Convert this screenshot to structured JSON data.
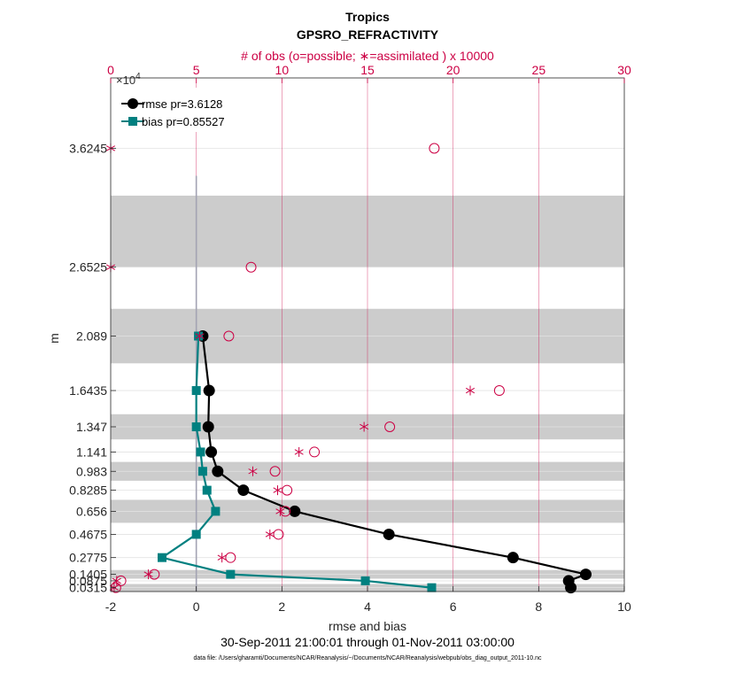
{
  "chart_data": {
    "type": "line",
    "title": "Tropics",
    "subtitle": "GPSRO_REFRACTIVITY",
    "top_axis_label": "# of obs (o=possible; ∗=assimilated ) x 10000",
    "top_axis_exponent_base": "×10",
    "top_axis_exponent_power": "4",
    "xlabel": "rmse and bias",
    "ylabel": "m",
    "time_range": "30-Sep-2011 21:00:01 through 01-Nov-2011 03:00:00",
    "data_file": "data file: /Users/gharamti/Documents/NCAR/Reanalysis/~/Documents/NCAR/Reanalysis/webpub/obs_diag_output_2011-10.nc",
    "xlim": [
      -2,
      10
    ],
    "x_ticks": [
      -2,
      0,
      2,
      4,
      6,
      8,
      10
    ],
    "x_tick_labels": [
      "-2",
      "0",
      "2",
      "4",
      "6",
      "8",
      "10"
    ],
    "top_xlim": [
      0,
      30
    ],
    "top_ticks": [
      0,
      5,
      10,
      15,
      20,
      25,
      30
    ],
    "top_tick_labels": [
      "0",
      "5",
      "10",
      "15",
      "20",
      "25",
      "30"
    ],
    "ylim": [
      0,
      4.2
    ],
    "levels": [
      0.0315,
      0.0875,
      0.1405,
      0.2775,
      0.4675,
      0.656,
      0.8285,
      0.983,
      1.141,
      1.347,
      1.6435,
      2.089,
      2.6525,
      3.6245
    ],
    "level_labels": [
      "0.0315",
      "0.0875",
      "0.1405",
      "0.2775",
      "0.4675",
      "0.656",
      "0.8285",
      "0.983",
      "1.141",
      "1.347",
      "1.6435",
      "2.089",
      "2.6525",
      "3.6245"
    ],
    "shaded_bands": [
      [
        0.0015,
        0.0615
      ],
      [
        0.105,
        0.176
      ],
      [
        0.562,
        0.75
      ],
      [
        0.906,
        1.06
      ],
      [
        1.244,
        1.45
      ],
      [
        1.866,
        2.312
      ],
      [
        2.6525,
        3.2375
      ]
    ],
    "series": [
      {
        "name": "rmse",
        "legend": "rmse pr=3.6128",
        "color": "#000000",
        "marker": "circle",
        "points": [
          [
            8.75,
            0.0315
          ],
          [
            8.7,
            0.0875
          ],
          [
            9.1,
            0.1405
          ],
          [
            7.4,
            0.2775
          ],
          [
            4.5,
            0.4675
          ],
          [
            2.3,
            0.656
          ],
          [
            1.1,
            0.8285
          ],
          [
            0.5,
            0.983
          ],
          [
            0.35,
            1.141
          ],
          [
            0.28,
            1.347
          ],
          [
            0.3,
            1.6435
          ],
          [
            0.15,
            2.089
          ]
        ]
      },
      {
        "name": "bias",
        "legend": "bias pr=0.85527",
        "color": "#008080",
        "marker": "square",
        "points": [
          [
            5.5,
            0.0315
          ],
          [
            3.95,
            0.0875
          ],
          [
            0.8,
            0.1405
          ],
          [
            -0.8,
            0.2775
          ],
          [
            0.0,
            0.4675
          ],
          [
            0.45,
            0.656
          ],
          [
            0.25,
            0.8285
          ],
          [
            0.15,
            0.983
          ],
          [
            0.1,
            1.141
          ],
          [
            0.0,
            1.347
          ],
          [
            0.0,
            1.6435
          ],
          [
            0.05,
            2.089
          ]
        ]
      }
    ],
    "obs_possible": [
      [
        0.3,
        0.0315
      ],
      [
        0.6,
        0.0875
      ],
      [
        2.55,
        0.1405
      ],
      [
        7.0,
        0.2775
      ],
      [
        9.8,
        0.4675
      ],
      [
        10.2,
        0.656
      ],
      [
        10.3,
        0.8285
      ],
      [
        9.6,
        0.983
      ],
      [
        11.9,
        1.141
      ],
      [
        16.3,
        1.347
      ],
      [
        22.7,
        1.6435
      ],
      [
        6.9,
        2.089
      ],
      [
        8.2,
        2.6525
      ],
      [
        18.9,
        3.6245
      ]
    ],
    "obs_assimilated": [
      [
        0.2,
        0.0315
      ],
      [
        0.35,
        0.0875
      ],
      [
        2.2,
        0.1405
      ],
      [
        6.5,
        0.2775
      ],
      [
        9.3,
        0.4675
      ],
      [
        9.9,
        0.656
      ],
      [
        9.75,
        0.8285
      ],
      [
        8.3,
        0.983
      ],
      [
        11.0,
        1.141
      ],
      [
        14.8,
        1.347
      ],
      [
        21.0,
        1.6435
      ],
      [
        5.2,
        2.089
      ],
      [
        0.0,
        2.6525
      ],
      [
        0.0,
        3.6245
      ]
    ],
    "vertical_line": {
      "x": 0,
      "y_range": [
        0,
        3.4
      ]
    },
    "colors": {
      "rmse": "#000000",
      "bias": "#008080",
      "obs": "#cc0044",
      "band": "#cccccc",
      "grid": "#e3e3e3",
      "vline": "#a3a3b3"
    }
  }
}
